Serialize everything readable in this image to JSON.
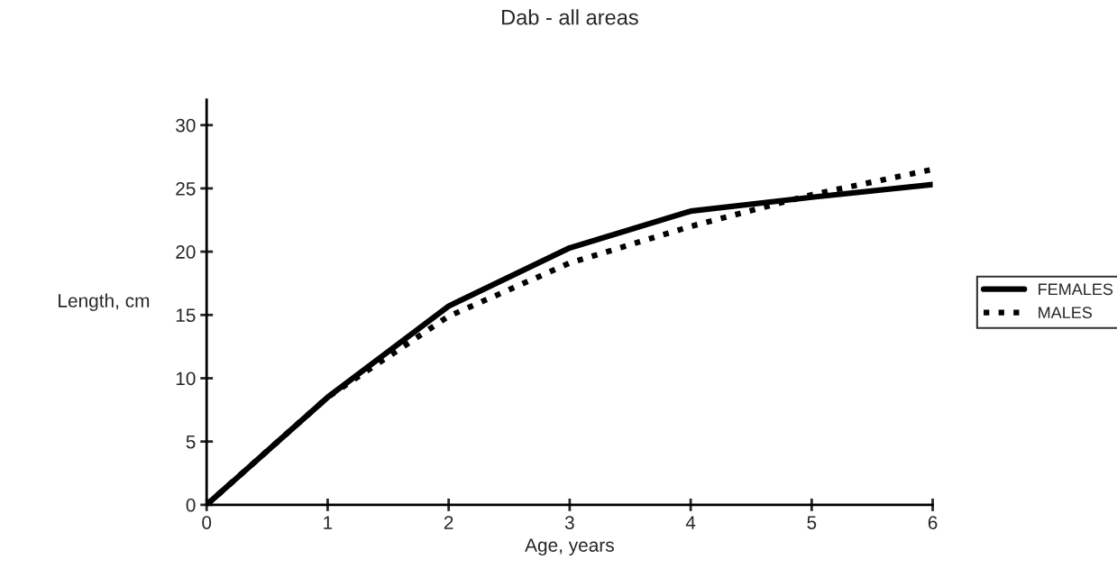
{
  "chart_data": {
    "type": "line",
    "title": "Dab - all areas",
    "xlabel": "Age, years",
    "ylabel": "Length, cm",
    "x": [
      0,
      1,
      2,
      3,
      4,
      5,
      6
    ],
    "series": [
      {
        "name": "FEMALES",
        "color": "#000000",
        "line_style": "solid",
        "values": [
          0,
          8.5,
          15.7,
          20.3,
          23.2,
          24.3,
          25.3
        ]
      },
      {
        "name": "MALES",
        "color": "#000000",
        "line_style": "dotted",
        "values": [
          0,
          8.5,
          14.9,
          19.1,
          22.0,
          24.5,
          26.5
        ]
      }
    ],
    "xlim": [
      0,
      6
    ],
    "xticks": [
      0,
      1,
      2,
      3,
      4,
      5,
      6
    ],
    "ylim": [
      0,
      32
    ],
    "yticks": [
      0,
      5,
      10,
      15,
      20,
      25,
      30
    ],
    "grid": false,
    "legend": "right",
    "marker": "none"
  }
}
